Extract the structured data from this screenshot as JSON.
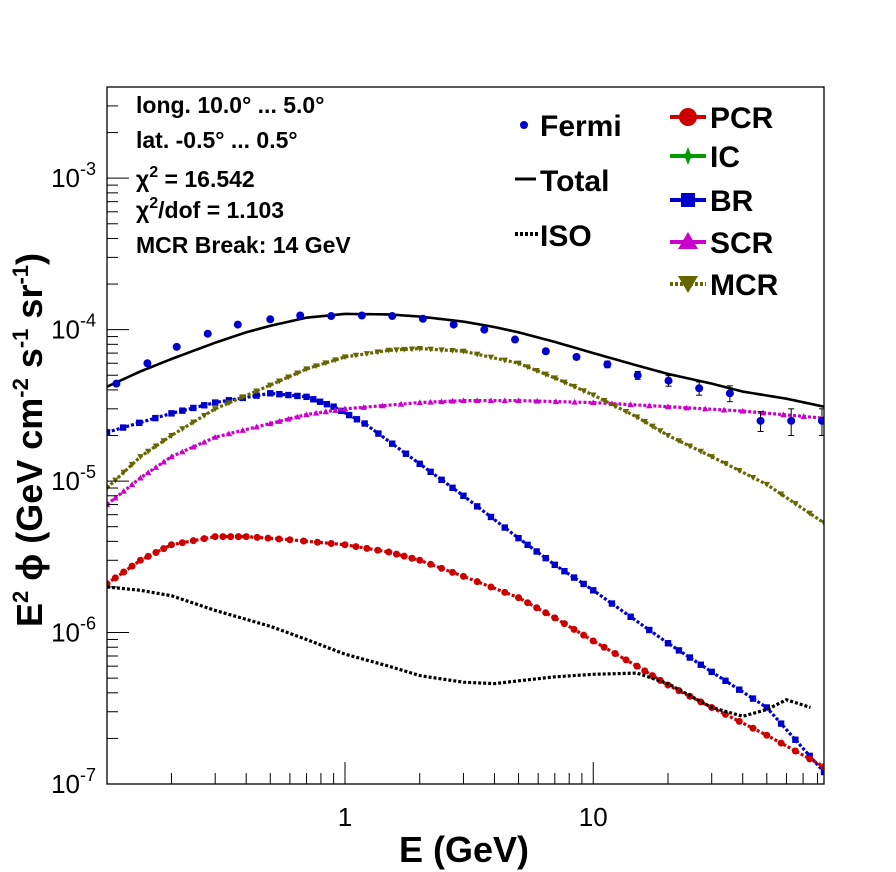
{
  "chart_data": {
    "type": "line",
    "x_scale": "log",
    "y_scale": "log",
    "xlim": [
      0.11,
      85
    ],
    "ylim": [
      1e-07,
      0.004
    ],
    "xlabel": "E (GeV)",
    "ylabel": {
      "prefix": "E",
      "prefix_sup": "2",
      "phi": "ϕ",
      "open": "(GeV cm",
      "sup1": "-2",
      "mid": " s",
      "sup2": "-1",
      "mid2": " sr",
      "sup3": "-1",
      "close": ")"
    },
    "x_tick_labels": [
      {
        "value": 1,
        "label": "1"
      },
      {
        "value": 10,
        "label": "10"
      }
    ],
    "y_tick_labels": [
      {
        "value": 1e-07,
        "base": "10",
        "exp": "-7"
      },
      {
        "value": 1e-06,
        "base": "10",
        "exp": "-6"
      },
      {
        "value": 1e-05,
        "base": "10",
        "exp": "-5"
      },
      {
        "value": 0.0001,
        "base": "10",
        "exp": "-4"
      },
      {
        "value": 0.001,
        "base": "10",
        "exp": "-3"
      }
    ],
    "info_text": {
      "line1": "long. 10.0° ... 5.0°",
      "line2": "lat. -0.5° ... 0.5°",
      "chi2_symbol": "χ",
      "chi2_sup": "2",
      "chi2_rest": " = 16.542",
      "chidof_sup": "2",
      "chidof_rest": "/dof = 1.103",
      "line5": "MCR Break: 14 GeV"
    },
    "legend": {
      "left": [
        {
          "label": "Fermi",
          "color": "#0000cc",
          "marker": "circle-small"
        },
        {
          "label": "Total",
          "color": "#000000",
          "marker": "line"
        },
        {
          "label": "ISO",
          "color": "#000000",
          "marker": "dotted-line"
        }
      ],
      "right": [
        {
          "label": "PCR",
          "color": "#cc0000",
          "marker": "circle"
        },
        {
          "label": "IC",
          "color": "#009900",
          "marker": "star"
        },
        {
          "label": "BR",
          "color": "#0000cc",
          "marker": "square"
        },
        {
          "label": "SCR",
          "color": "#cc00cc",
          "marker": "triangle-up"
        },
        {
          "label": "MCR",
          "color": "#666600",
          "marker": "triangle-down"
        }
      ]
    },
    "series": [
      {
        "name": "Total",
        "color": "#000000",
        "style": "solid",
        "x": [
          0.11,
          0.15,
          0.2,
          0.3,
          0.4,
          0.5,
          0.7,
          1.0,
          1.5,
          2.0,
          3.0,
          4.0,
          5.0,
          7.0,
          10,
          15,
          20,
          30,
          40,
          60,
          85
        ],
        "y": [
          4.2e-05,
          5.3e-05,
          6.4e-05,
          8.2e-05,
          9.6e-05,
          0.000106,
          0.00012,
          0.000127,
          0.000126,
          0.000122,
          0.000113,
          0.000104,
          9.6e-05,
          8.3e-05,
          7e-05,
          5.8e-05,
          5.1e-05,
          4.4e-05,
          3.9e-05,
          3.5e-05,
          3.1e-05
        ]
      },
      {
        "name": "BR",
        "color": "#0000cc",
        "style": "dotted",
        "marker": "square",
        "x": [
          0.11,
          0.2,
          0.3,
          0.5,
          0.7,
          0.9,
          1.2,
          2,
          3,
          5,
          7,
          10,
          20,
          30,
          50,
          85
        ],
        "y": [
          2.1e-05,
          2.8e-05,
          3.3e-05,
          3.8e-05,
          3.6e-05,
          3.1e-05,
          2.4e-05,
          1.3e-05,
          8e-06,
          4.2e-06,
          2.8e-06,
          1.9e-06,
          8.5e-07,
          5.5e-07,
          3.2e-07,
          1.2e-07
        ]
      },
      {
        "name": "SCR",
        "color": "#cc00cc",
        "style": "dotted",
        "marker": "triangle-up",
        "x": [
          0.11,
          0.15,
          0.2,
          0.3,
          0.5,
          0.7,
          1,
          2,
          3,
          5,
          10,
          20,
          40,
          85
        ],
        "y": [
          7e-06,
          1.05e-05,
          1.45e-05,
          1.95e-05,
          2.4e-05,
          2.75e-05,
          3e-05,
          3.3e-05,
          3.4e-05,
          3.4e-05,
          3.3e-05,
          3.1e-05,
          2.9e-05,
          2.6e-05
        ]
      },
      {
        "name": "MCR",
        "color": "#666600",
        "style": "dotted",
        "marker": "triangle-down",
        "x": [
          0.11,
          0.15,
          0.2,
          0.3,
          0.5,
          0.7,
          1,
          1.5,
          2,
          3,
          5,
          7,
          10,
          15,
          20,
          30,
          50,
          85
        ],
        "y": [
          9e-06,
          1.45e-05,
          2e-05,
          3e-05,
          4.3e-05,
          5.5e-05,
          6.6e-05,
          7.3e-05,
          7.5e-05,
          7.2e-05,
          6e-05,
          4.8e-05,
          3.7e-05,
          2.65e-05,
          2e-05,
          1.45e-05,
          9.5e-06,
          5.3e-06
        ]
      },
      {
        "name": "PCR",
        "color": "#cc0000",
        "style": "dotted",
        "marker": "circle",
        "x": [
          0.11,
          0.15,
          0.2,
          0.3,
          0.4,
          0.6,
          1,
          1.5,
          2,
          3,
          5,
          7,
          10,
          15,
          20,
          30,
          50,
          85
        ],
        "y": [
          2.1e-06,
          3e-06,
          3.8e-06,
          4.3e-06,
          4.3e-06,
          4.1e-06,
          3.8e-06,
          3.4e-06,
          3e-06,
          2.35e-06,
          1.7e-06,
          1.25e-06,
          8.8e-07,
          6e-07,
          4.5e-07,
          3.2e-07,
          2.1e-07,
          1.3e-07
        ]
      },
      {
        "name": "ISO",
        "color": "#000000",
        "style": "dotted",
        "x": [
          0.11,
          0.15,
          0.2,
          0.3,
          0.5,
          0.7,
          1,
          1.5,
          2,
          3,
          4,
          5,
          7,
          10,
          15,
          20,
          30,
          40,
          50,
          60,
          75
        ],
        "y": [
          2e-06,
          1.9e-06,
          1.75e-06,
          1.4e-06,
          1.1e-06,
          9e-07,
          7.2e-07,
          6e-07,
          5.2e-07,
          4.7e-07,
          4.6e-07,
          4.8e-07,
          5.1e-07,
          5.3e-07,
          5.4e-07,
          4.6e-07,
          3.2e-07,
          2.8e-07,
          3.1e-07,
          3.6e-07,
          3.2e-07
        ]
      }
    ],
    "fermi_points": {
      "name": "Fermi",
      "color": "#0000cc",
      "x": [
        0.12,
        0.16,
        0.21,
        0.28,
        0.37,
        0.5,
        0.66,
        0.88,
        1.17,
        1.55,
        2.06,
        2.74,
        3.64,
        4.84,
        6.44,
        8.56,
        11.4,
        15.1,
        20.1,
        26.7,
        35.5,
        47.2,
        62.7,
        83.4
      ],
      "y": [
        4.4e-05,
        6e-05,
        7.7e-05,
        9.4e-05,
        0.000108,
        0.000117,
        0.000124,
        0.000123,
        0.000124,
        0.000123,
        0.000118,
        0.000108,
        0.0001,
        8.6e-05,
        7.2e-05,
        6.6e-05,
        5.9e-05,
        5e-05,
        4.6e-05,
        4.1e-05,
        3.8e-05,
        2.5e-05,
        2.5e-05,
        2.5e-05
      ],
      "yerr": [
        0.02,
        0.02,
        0.02,
        0.02,
        0.02,
        0.02,
        0.02,
        0.02,
        0.02,
        0.02,
        0.02,
        0.02,
        0.02,
        0.03,
        0.03,
        0.04,
        0.05,
        0.06,
        0.08,
        0.1,
        0.12,
        0.15,
        0.2,
        0.2
      ]
    }
  }
}
